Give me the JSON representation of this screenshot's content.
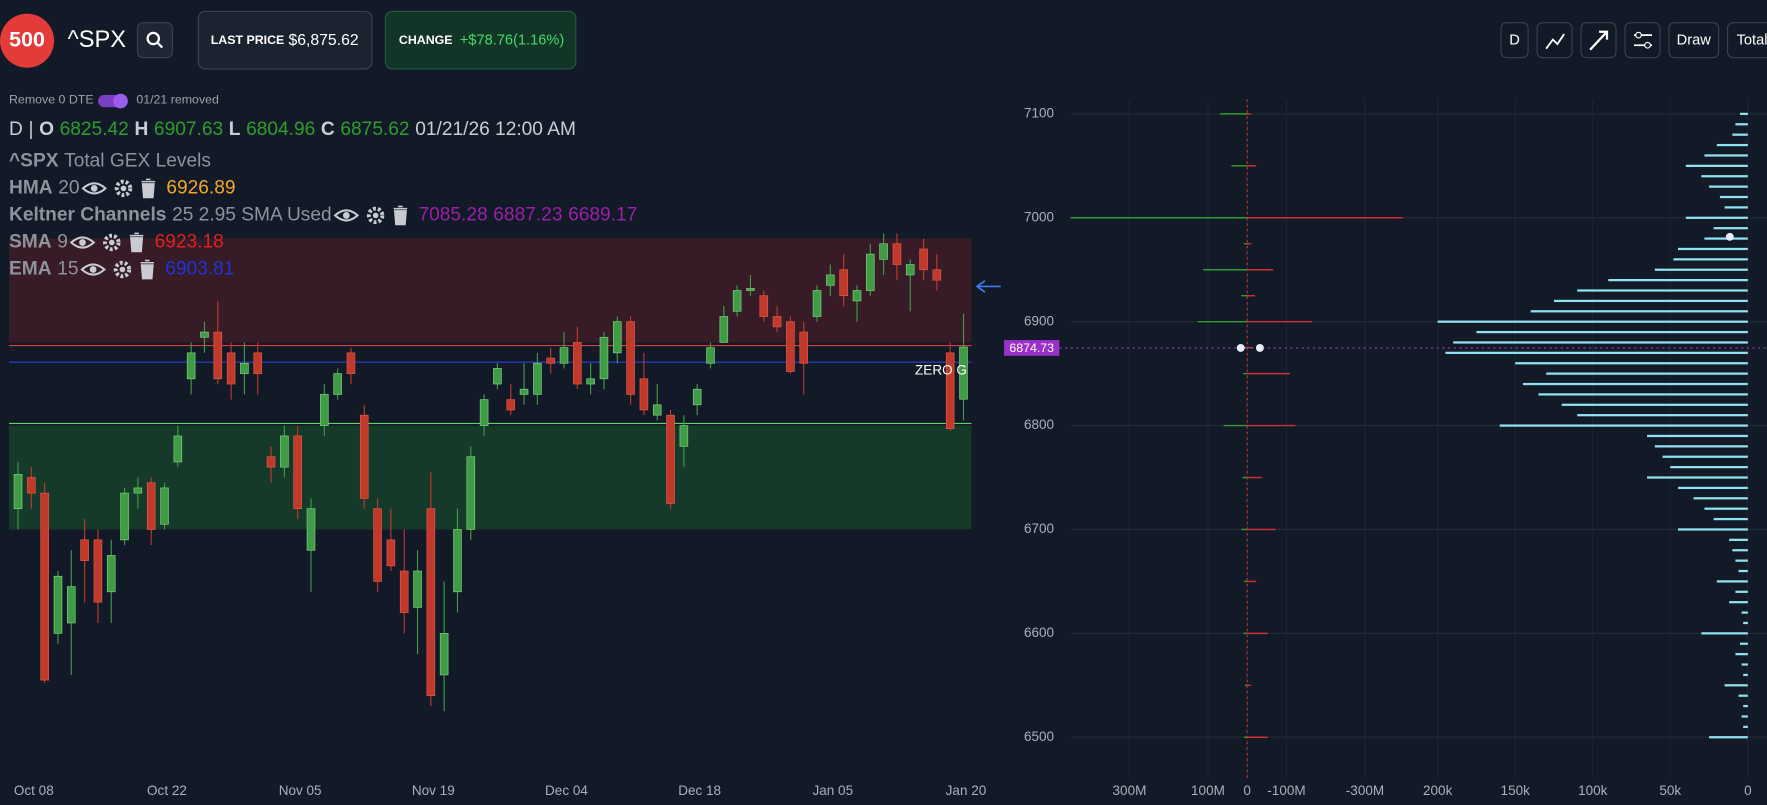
{
  "header": {
    "logo": "500",
    "symbol": "^SPX",
    "last_price_label": "LAST PRICE",
    "last_price": "$6,875.62",
    "change_label": "CHANGE",
    "change": "+$78.76(1.16%)",
    "toolbar": {
      "interval": "D",
      "draw": "Draw",
      "view": "Total"
    }
  },
  "controls": {
    "toggle_label": "Remove 0 DTE",
    "toggle_note": "01/21 removed"
  },
  "legend": {
    "ohlc": {
      "interval": "D",
      "separator": "|",
      "o_label": "O",
      "o": "6825.42",
      "h_label": "H",
      "h": "6907.63",
      "l_label": "L",
      "l": "6804.96",
      "c_label": "C",
      "c": "6875.62",
      "datetime": "01/21/26 12:00 AM"
    },
    "study": {
      "symbol": "^SPX",
      "name": "Total GEX Levels"
    },
    "indicators": [
      {
        "name": "HMA",
        "params": "20",
        "values": [
          "6926.89"
        ],
        "color": "#f5a623"
      },
      {
        "name": "Keltner Channels",
        "params": "25 2.95 SMA Used",
        "values": [
          "7085.28",
          "6887.23",
          "6689.17"
        ],
        "color": "#9b1fa8"
      },
      {
        "name": "SMA",
        "params": "9",
        "values": [
          "6923.18"
        ],
        "color": "#e0201e"
      },
      {
        "name": "EMA",
        "params": "15",
        "values": [
          "6903.81"
        ],
        "color": "#1f33d6"
      }
    ]
  },
  "chart_data": [
    {
      "type": "candlestick",
      "categories": [
        "Oct 08",
        null,
        null,
        null,
        null,
        null,
        null,
        null,
        null,
        null,
        "Oct 22",
        null,
        null,
        null,
        null,
        null,
        null,
        null,
        null,
        null,
        "Nov 05",
        null,
        null,
        null,
        null,
        null,
        null,
        null,
        null,
        null,
        "Nov 19",
        null,
        null,
        null,
        null,
        null,
        null,
        null,
        null,
        null,
        "Dec 04",
        null,
        null,
        null,
        null,
        null,
        null,
        null,
        null,
        null,
        "Dec 18",
        null,
        null,
        null,
        null,
        null,
        null,
        null,
        null,
        null,
        "Jan 05",
        null,
        null,
        null,
        null,
        null,
        null,
        null,
        null,
        null,
        "Jan 20",
        null
      ],
      "ohlc": [
        [
          6720,
          6765,
          6700,
          6753
        ],
        [
          6750,
          6760,
          6720,
          6735
        ],
        [
          6735,
          6745,
          6552,
          6555
        ],
        [
          6600,
          6660,
          6590,
          6655
        ],
        [
          6610,
          6680,
          6560,
          6645
        ],
        [
          6690,
          6710,
          6630,
          6670
        ],
        [
          6690,
          6700,
          6610,
          6630
        ],
        [
          6640,
          6690,
          6610,
          6675
        ],
        [
          6690,
          6740,
          6685,
          6735
        ],
        [
          6735,
          6750,
          6720,
          6740
        ],
        [
          6745,
          6750,
          6685,
          6700
        ],
        [
          6705,
          6745,
          6700,
          6740
        ],
        [
          6765,
          6800,
          6760,
          6790
        ],
        [
          6845,
          6880,
          6830,
          6870
        ],
        [
          6885,
          6900,
          6870,
          6890
        ],
        [
          6890,
          6920,
          6840,
          6845
        ],
        [
          6870,
          6880,
          6825,
          6840
        ],
        [
          6850,
          6880,
          6830,
          6860
        ],
        [
          6870,
          6880,
          6830,
          6850
        ],
        [
          6770,
          6780,
          6745,
          6760
        ],
        [
          6760,
          6800,
          6750,
          6790
        ],
        [
          6790,
          6800,
          6710,
          6720
        ],
        [
          6680,
          6730,
          6640,
          6720
        ],
        [
          6800,
          6840,
          6790,
          6830
        ],
        [
          6830,
          6855,
          6825,
          6850
        ],
        [
          6870,
          6875,
          6840,
          6850
        ],
        [
          6810,
          6820,
          6720,
          6730
        ],
        [
          6720,
          6730,
          6640,
          6650
        ],
        [
          6690,
          6720,
          6660,
          6665
        ],
        [
          6660,
          6700,
          6600,
          6620
        ],
        [
          6625,
          6680,
          6580,
          6660
        ],
        [
          6720,
          6755,
          6530,
          6540
        ],
        [
          6560,
          6650,
          6525,
          6600
        ],
        [
          6640,
          6720,
          6620,
          6700
        ],
        [
          6700,
          6780,
          6690,
          6770
        ],
        [
          6800,
          6830,
          6790,
          6825
        ],
        [
          6840,
          6860,
          6835,
          6855
        ],
        [
          6825,
          6840,
          6810,
          6815
        ],
        [
          6830,
          6860,
          6820,
          6835
        ],
        [
          6830,
          6870,
          6820,
          6860
        ],
        [
          6865,
          6875,
          6850,
          6860
        ],
        [
          6860,
          6890,
          6855,
          6875
        ],
        [
          6880,
          6895,
          6835,
          6840
        ],
        [
          6840,
          6860,
          6830,
          6845
        ],
        [
          6845,
          6890,
          6835,
          6885
        ],
        [
          6870,
          6905,
          6860,
          6900
        ],
        [
          6900,
          6905,
          6820,
          6830
        ],
        [
          6845,
          6870,
          6810,
          6815
        ],
        [
          6810,
          6840,
          6805,
          6820
        ],
        [
          6810,
          6815,
          6720,
          6725
        ],
        [
          6780,
          6810,
          6760,
          6800
        ],
        [
          6820,
          6840,
          6810,
          6835
        ],
        [
          6860,
          6880,
          6855,
          6875
        ],
        [
          6880,
          6915,
          6880,
          6905
        ],
        [
          6910,
          6935,
          6905,
          6930
        ],
        [
          6930,
          6945,
          6925,
          6932
        ],
        [
          6925,
          6930,
          6900,
          6905
        ],
        [
          6905,
          6915,
          6890,
          6895
        ],
        [
          6900,
          6905,
          6850,
          6852
        ],
        [
          6890,
          6900,
          6830,
          6860
        ],
        [
          6905,
          6935,
          6900,
          6930
        ],
        [
          6935,
          6955,
          6925,
          6945
        ],
        [
          6950,
          6965,
          6915,
          6925
        ],
        [
          6920,
          6935,
          6900,
          6930
        ],
        [
          6930,
          6975,
          6925,
          6965
        ],
        [
          6960,
          6985,
          6945,
          6975
        ],
        [
          6975,
          6985,
          6940,
          6955
        ],
        [
          6945,
          6960,
          6910,
          6955
        ],
        [
          6970,
          6980,
          6940,
          6950
        ],
        [
          6950,
          6965,
          6930,
          6940
        ],
        [
          6870,
          6880,
          6795,
          6797
        ],
        [
          6825.42,
          6907.63,
          6804.96,
          6875.62
        ]
      ],
      "up_color": "#3f9b45",
      "down_color": "#c0392b",
      "ylim": [
        6461,
        7114
      ],
      "yticks": [
        6500,
        6600,
        6700,
        6800,
        6900,
        7000,
        7100
      ],
      "levels": [
        {
          "value": 6877,
          "color": "#e53935"
        },
        {
          "value": 6861,
          "color": "#2a3fd8"
        },
        {
          "value": 6802,
          "color": "#5fd35f"
        }
      ],
      "zones": [
        {
          "from": 6880,
          "to": 6980,
          "color": "rgba(150,35,40,0.28)"
        },
        {
          "from": 6700,
          "to": 6800,
          "color": "rgba(30,120,50,0.35)"
        }
      ],
      "zero_gamma_label": "ZERO G",
      "last_price": 6874.73,
      "last_price_color": "#9b30c8"
    },
    {
      "type": "bar",
      "orientation": "horizontal",
      "y": [
        6500,
        6550,
        6600,
        6650,
        6700,
        6750,
        6800,
        6850,
        6875,
        6900,
        6925,
        6950,
        6975,
        7000,
        7050,
        7100
      ],
      "series": [
        {
          "color": "#2e9d2e",
          "values": [
            8000000,
            6000000,
            10000000,
            8000000,
            15000000,
            12000000,
            60000000,
            10000000,
            20000000,
            126000000,
            15000000,
            112000000,
            8000000,
            450000000,
            40000000,
            69000000
          ]
        },
        {
          "color": "#d32f2f",
          "values": [
            -52000000,
            -10000000,
            -52000000,
            -23000000,
            -72000000,
            -37000000,
            -123000000,
            -109000000,
            -15000000,
            -166000000,
            -20000000,
            -66000000,
            -10000000,
            -396000000,
            -23000000,
            -10000000
          ]
        }
      ],
      "xlim": [
        450000000,
        -440000000
      ],
      "xticks": [
        {
          "value": 300000000,
          "label": "300M"
        },
        {
          "value": 100000000,
          "label": "100M"
        },
        0,
        {
          "value": -100000000,
          "label": "-100M"
        },
        {
          "value": -300000000,
          "label": "-300M"
        }
      ]
    },
    {
      "type": "bar",
      "orientation": "horizontal",
      "y": [
        7100,
        7090,
        7080,
        7070,
        7060,
        7050,
        7040,
        7030,
        7020,
        7010,
        7000,
        6990,
        6980,
        6970,
        6960,
        6950,
        6940,
        6930,
        6920,
        6910,
        6900,
        6890,
        6880,
        6870,
        6860,
        6850,
        6840,
        6830,
        6820,
        6810,
        6800,
        6790,
        6780,
        6770,
        6760,
        6750,
        6740,
        6730,
        6720,
        6710,
        6700,
        6690,
        6680,
        6670,
        6660,
        6650,
        6640,
        6630,
        6620,
        6610,
        6600,
        6590,
        6580,
        6570,
        6560,
        6550,
        6540,
        6530,
        6520,
        6510,
        6500
      ],
      "values": [
        5000,
        8000,
        10000,
        20000,
        28000,
        40000,
        30000,
        25000,
        18000,
        15000,
        40000,
        22000,
        28000,
        45000,
        48000,
        60000,
        90000,
        110000,
        125000,
        140000,
        200000,
        175000,
        190000,
        195000,
        150000,
        130000,
        145000,
        135000,
        120000,
        110000,
        160000,
        65000,
        60000,
        55000,
        50000,
        65000,
        45000,
        35000,
        28000,
        22000,
        45000,
        12000,
        10000,
        8000,
        6000,
        20000,
        8000,
        12000,
        4000,
        3000,
        30000,
        5000,
        8000,
        4000,
        3000,
        15000,
        6000,
        3000,
        4000,
        3000,
        25000
      ],
      "color": "#8fe3f0",
      "xlim": [
        210000,
        -8000
      ],
      "xticks": [
        {
          "value": 200000,
          "label": "200k"
        },
        {
          "value": 150000,
          "label": "150k"
        },
        {
          "value": 100000,
          "label": "100k"
        },
        {
          "value": 50000,
          "label": "50k"
        },
        0
      ]
    }
  ]
}
